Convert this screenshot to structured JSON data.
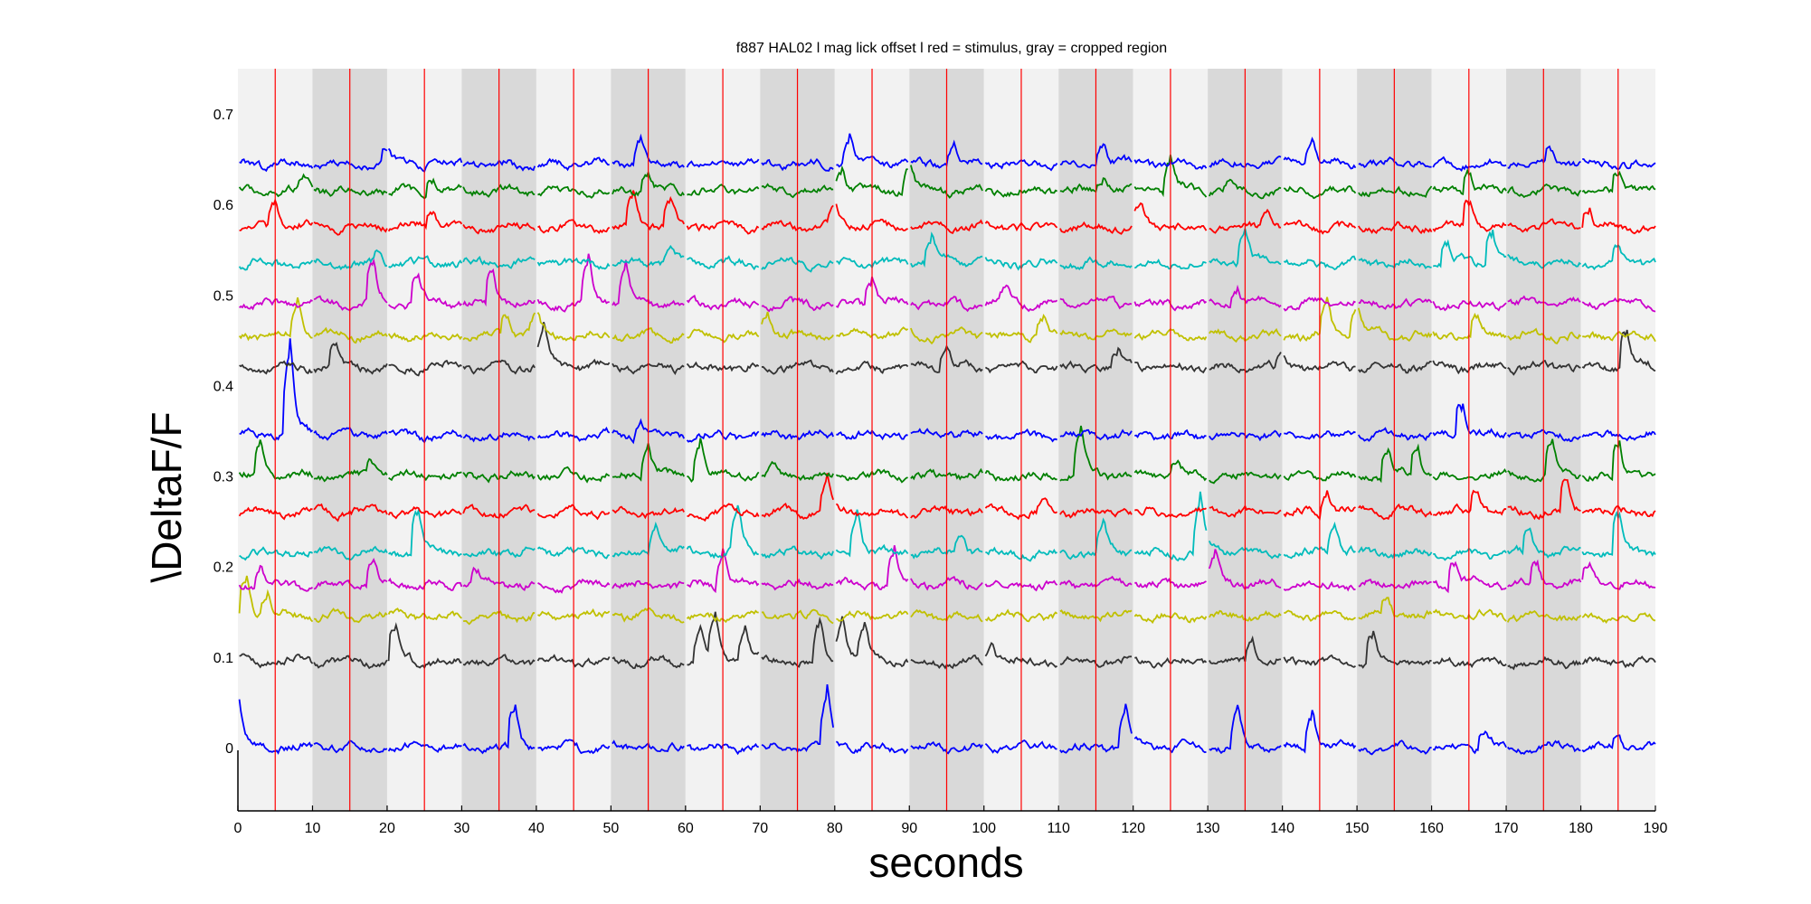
{
  "chart_data": {
    "type": "line",
    "title": "f887 HAL02 l mag lick  offset l red = stimulus, gray = cropped region",
    "xlabel": "seconds",
    "ylabel": "\\DeltaF/F",
    "xlim": [
      0,
      190
    ],
    "ylim": [
      -0.07,
      0.75
    ],
    "x_ticks": [
      0,
      10,
      20,
      30,
      40,
      50,
      60,
      70,
      80,
      90,
      100,
      110,
      120,
      130,
      140,
      150,
      160,
      170,
      180,
      190
    ],
    "y_ticks": [
      0,
      0.1,
      0.2,
      0.3,
      0.4,
      0.5,
      0.6,
      0.7
    ],
    "grid": false,
    "stimulus_color": "#ff0000",
    "stimulus_times": [
      5,
      15,
      25,
      35,
      45,
      55,
      65,
      75,
      85,
      95,
      105,
      115,
      125,
      135,
      145,
      155,
      165,
      175,
      185
    ],
    "band_light_color": "#f2f2f2",
    "band_dark_color": "#d9d9d9",
    "bands": [
      {
        "start": 0,
        "end": 10,
        "shade": "light"
      },
      {
        "start": 10,
        "end": 20,
        "shade": "dark"
      },
      {
        "start": 20,
        "end": 30,
        "shade": "light"
      },
      {
        "start": 30,
        "end": 40,
        "shade": "dark"
      },
      {
        "start": 40,
        "end": 50,
        "shade": "light"
      },
      {
        "start": 50,
        "end": 60,
        "shade": "dark"
      },
      {
        "start": 60,
        "end": 70,
        "shade": "light"
      },
      {
        "start": 70,
        "end": 80,
        "shade": "dark"
      },
      {
        "start": 80,
        "end": 90,
        "shade": "light"
      },
      {
        "start": 90,
        "end": 100,
        "shade": "dark"
      },
      {
        "start": 100,
        "end": 110,
        "shade": "light"
      },
      {
        "start": 110,
        "end": 120,
        "shade": "dark"
      },
      {
        "start": 120,
        "end": 130,
        "shade": "light"
      },
      {
        "start": 130,
        "end": 140,
        "shade": "dark"
      },
      {
        "start": 140,
        "end": 150,
        "shade": "light"
      },
      {
        "start": 150,
        "end": 160,
        "shade": "dark"
      },
      {
        "start": 160,
        "end": 170,
        "shade": "light"
      },
      {
        "start": 170,
        "end": 180,
        "shade": "dark"
      },
      {
        "start": 180,
        "end": 190,
        "shade": "light"
      }
    ],
    "series": [
      {
        "color": "#0000ff",
        "baseline": 0.0,
        "peaks": [
          [
            0,
            0.05
          ],
          [
            37,
            0.04
          ],
          [
            79,
            0.05
          ],
          [
            119,
            0.04
          ],
          [
            134,
            0.035
          ],
          [
            144,
            0.035
          ],
          [
            167,
            0.02
          ],
          [
            185,
            0.015
          ]
        ]
      },
      {
        "color": "#333333",
        "baseline": 0.095,
        "peaks": [
          [
            21,
            0.035
          ],
          [
            62,
            0.03
          ],
          [
            64,
            0.04
          ],
          [
            68,
            0.03
          ],
          [
            78,
            0.035
          ],
          [
            81,
            0.04
          ],
          [
            84,
            0.03
          ],
          [
            101,
            0.02
          ],
          [
            136,
            0.02
          ],
          [
            152,
            0.03
          ]
        ]
      },
      {
        "color": "#c0c000",
        "baseline": 0.145,
        "peaks": [
          [
            1,
            0.04
          ],
          [
            4,
            0.02
          ],
          [
            154,
            0.02
          ]
        ]
      },
      {
        "color": "#cc00cc",
        "baseline": 0.18,
        "peaks": [
          [
            3,
            0.015
          ],
          [
            18,
            0.025
          ],
          [
            32,
            0.015
          ],
          [
            65,
            0.03
          ],
          [
            88,
            0.035
          ],
          [
            131,
            0.03
          ],
          [
            163,
            0.03
          ],
          [
            174,
            0.02
          ],
          [
            181,
            0.02
          ]
        ]
      },
      {
        "color": "#00bbbb",
        "baseline": 0.215,
        "peaks": [
          [
            24,
            0.045
          ],
          [
            56,
            0.025
          ],
          [
            67,
            0.04
          ],
          [
            83,
            0.04
          ],
          [
            97,
            0.015
          ],
          [
            116,
            0.025
          ],
          [
            129,
            0.05
          ],
          [
            147,
            0.025
          ],
          [
            173,
            0.025
          ],
          [
            185,
            0.04
          ]
        ]
      },
      {
        "color": "#ff0000",
        "baseline": 0.26,
        "peaks": [
          [
            79,
            0.03
          ],
          [
            108,
            0.01
          ],
          [
            146,
            0.025
          ],
          [
            166,
            0.025
          ],
          [
            178,
            0.03
          ]
        ]
      },
      {
        "color": "#008000",
        "baseline": 0.3,
        "peaks": [
          [
            3,
            0.03
          ],
          [
            18,
            0.015
          ],
          [
            55,
            0.03
          ],
          [
            62,
            0.035
          ],
          [
            72,
            0.01
          ],
          [
            113,
            0.04
          ],
          [
            126,
            0.015
          ],
          [
            154,
            0.03
          ],
          [
            158,
            0.03
          ],
          [
            176,
            0.03
          ],
          [
            185,
            0.035
          ]
        ]
      },
      {
        "color": "#0000ff",
        "baseline": 0.345,
        "peaks": [
          [
            7,
            0.08
          ],
          [
            54,
            0.015
          ],
          [
            164,
            0.035
          ]
        ]
      },
      {
        "color": "#333333",
        "baseline": 0.42,
        "peaks": [
          [
            13,
            0.025
          ],
          [
            41,
            0.035
          ],
          [
            95,
            0.02
          ],
          [
            118,
            0.015
          ],
          [
            140,
            0.01
          ],
          [
            186,
            0.04
          ]
        ]
      },
      {
        "color": "#c0c000",
        "baseline": 0.455,
        "peaks": [
          [
            8,
            0.035
          ],
          [
            36,
            0.025
          ],
          [
            40,
            0.02
          ],
          [
            71,
            0.02
          ],
          [
            108,
            0.02
          ],
          [
            146,
            0.03
          ],
          [
            150,
            0.03
          ],
          [
            166,
            0.02
          ]
        ]
      },
      {
        "color": "#cc00cc",
        "baseline": 0.49,
        "peaks": [
          [
            18,
            0.04
          ],
          [
            24,
            0.03
          ],
          [
            34,
            0.035
          ],
          [
            47,
            0.04
          ],
          [
            52,
            0.035
          ],
          [
            85,
            0.025
          ],
          [
            103,
            0.015
          ],
          [
            134,
            0.015
          ]
        ]
      },
      {
        "color": "#00bbbb",
        "baseline": 0.535,
        "peaks": [
          [
            19,
            0.01
          ],
          [
            58,
            0.015
          ],
          [
            93,
            0.025
          ],
          [
            135,
            0.03
          ],
          [
            162,
            0.025
          ],
          [
            168,
            0.035
          ],
          [
            185,
            0.015
          ]
        ]
      },
      {
        "color": "#ff0000",
        "baseline": 0.575,
        "peaks": [
          [
            5,
            0.025
          ],
          [
            26,
            0.02
          ],
          [
            53,
            0.03
          ],
          [
            58,
            0.025
          ],
          [
            80,
            0.02
          ],
          [
            121,
            0.02
          ],
          [
            138,
            0.015
          ],
          [
            165,
            0.03
          ],
          [
            181,
            0.02
          ]
        ]
      },
      {
        "color": "#008000",
        "baseline": 0.615,
        "peaks": [
          [
            9,
            0.015
          ],
          [
            26,
            0.015
          ],
          [
            55,
            0.02
          ],
          [
            81,
            0.02
          ],
          [
            90,
            0.025
          ],
          [
            116,
            0.015
          ],
          [
            125,
            0.03
          ],
          [
            133,
            0.01
          ],
          [
            165,
            0.025
          ],
          [
            185,
            0.02
          ]
        ]
      },
      {
        "color": "#0000ff",
        "baseline": 0.645,
        "peaks": [
          [
            20,
            0.015
          ],
          [
            54,
            0.025
          ],
          [
            82,
            0.025
          ],
          [
            96,
            0.02
          ],
          [
            116,
            0.02
          ],
          [
            144,
            0.025
          ],
          [
            176,
            0.015
          ]
        ]
      }
    ]
  }
}
